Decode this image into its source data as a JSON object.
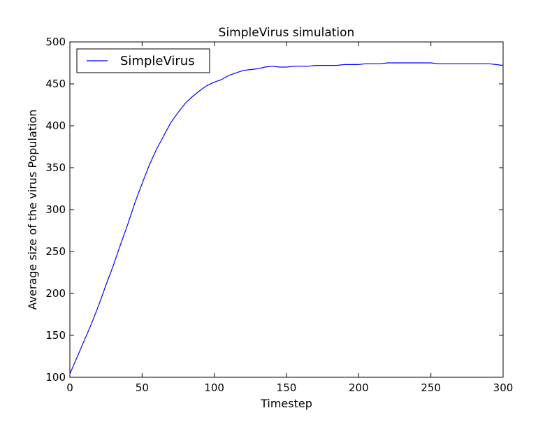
{
  "chart_data": {
    "type": "line",
    "title": "SimpleVirus simulation",
    "xlabel": "Timestep",
    "ylabel": "Average size of the virus Population",
    "xlim": [
      0,
      300
    ],
    "ylim": [
      100,
      500
    ],
    "xticks": [
      0,
      50,
      100,
      150,
      200,
      250,
      300
    ],
    "yticks": [
      100,
      150,
      200,
      250,
      300,
      350,
      400,
      450,
      500
    ],
    "grid": false,
    "legend_position": "top-left",
    "series": [
      {
        "name": "SimpleVirus",
        "color": "#0000ff",
        "x": [
          0,
          5,
          10,
          15,
          20,
          25,
          30,
          35,
          40,
          45,
          50,
          55,
          60,
          65,
          70,
          75,
          80,
          85,
          90,
          95,
          100,
          105,
          110,
          115,
          120,
          125,
          130,
          135,
          140,
          145,
          150,
          155,
          160,
          165,
          170,
          175,
          180,
          185,
          190,
          195,
          200,
          205,
          210,
          215,
          220,
          225,
          230,
          235,
          240,
          245,
          250,
          255,
          260,
          265,
          270,
          275,
          280,
          285,
          290,
          295,
          300
        ],
        "y": [
          104,
          124,
          144,
          164,
          186,
          210,
          233,
          258,
          282,
          308,
          331,
          353,
          372,
          388,
          404,
          416,
          427,
          435,
          442,
          448,
          452,
          455,
          460,
          463,
          466,
          467,
          468,
          470,
          471,
          470,
          470,
          471,
          471,
          471,
          472,
          472,
          472,
          472,
          473,
          473,
          473,
          474,
          474,
          474,
          475,
          475,
          475,
          475,
          475,
          475,
          475,
          474,
          474,
          474,
          474,
          474,
          474,
          474,
          474,
          473,
          472
        ]
      }
    ]
  }
}
